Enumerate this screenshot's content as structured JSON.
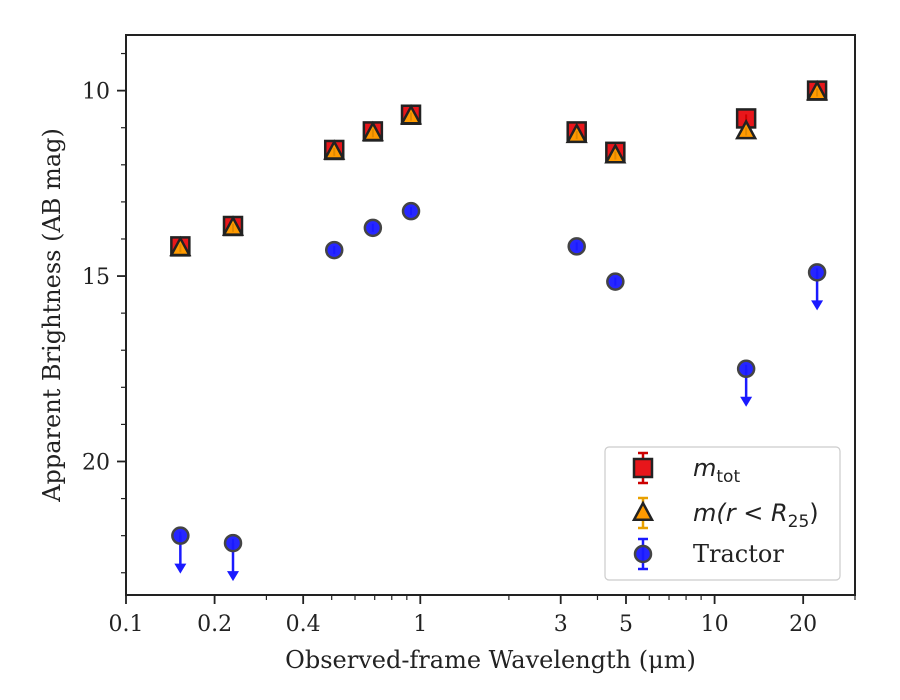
{
  "chart_data": {
    "type": "scatter",
    "xlabel": "Observed-frame Wavelength (μm)",
    "ylabel": "Apparent Brightness (AB mag)",
    "xscale": "log",
    "xlim": [
      0.1,
      30
    ],
    "ylim": [
      23.6,
      8.5
    ],
    "y_inverted": true,
    "x_ticks": [
      0.1,
      0.2,
      0.4,
      1,
      3,
      5,
      10,
      20
    ],
    "x_tick_labels": [
      "0.1",
      "0.2",
      "0.4",
      "1",
      "3",
      "5",
      "10",
      "20"
    ],
    "y_ticks": [
      10,
      15,
      20
    ],
    "y_tick_labels": [
      "10",
      "15",
      "20"
    ],
    "grid": false,
    "legend_placement": "lower-right",
    "series": [
      {
        "key": "mtot",
        "marker": "square",
        "color": "#e8161b",
        "edge_color": "#222222",
        "x": [
          0.153,
          0.231,
          0.51,
          0.69,
          0.93,
          3.4,
          4.6,
          12.8,
          22.3
        ],
        "y": [
          14.2,
          13.65,
          11.6,
          11.1,
          10.65,
          11.1,
          11.65,
          10.75,
          10.0
        ]
      },
      {
        "key": "mr25",
        "marker": "triangle",
        "color": "#ff9a00",
        "edge_color": "#222222",
        "x": [
          0.153,
          0.231,
          0.51,
          0.69,
          0.93,
          3.4,
          4.6,
          12.8,
          22.3
        ],
        "y": [
          14.25,
          13.7,
          11.65,
          11.15,
          10.7,
          11.2,
          11.75,
          11.1,
          10.05
        ]
      },
      {
        "name": "Tractor",
        "key": "tractor",
        "marker": "circle",
        "color": "#1a1aff",
        "edge_color": "#444444",
        "x": [
          0.153,
          0.231,
          0.51,
          0.69,
          0.93,
          3.4,
          4.6,
          12.8,
          22.3
        ],
        "y": [
          22.0,
          22.2,
          14.3,
          13.7,
          13.25,
          14.2,
          15.15,
          17.5,
          14.9
        ],
        "upper_limit": [
          true,
          true,
          false,
          false,
          false,
          false,
          false,
          true,
          true
        ]
      }
    ],
    "legend": {
      "entries": [
        {
          "series": "mtot",
          "base": "m",
          "sub": "tot"
        },
        {
          "series": "mr25",
          "base": "m(r < R",
          "sub": "25",
          "tail": ")"
        },
        {
          "series": "tractor",
          "label": "Tractor"
        }
      ]
    }
  }
}
